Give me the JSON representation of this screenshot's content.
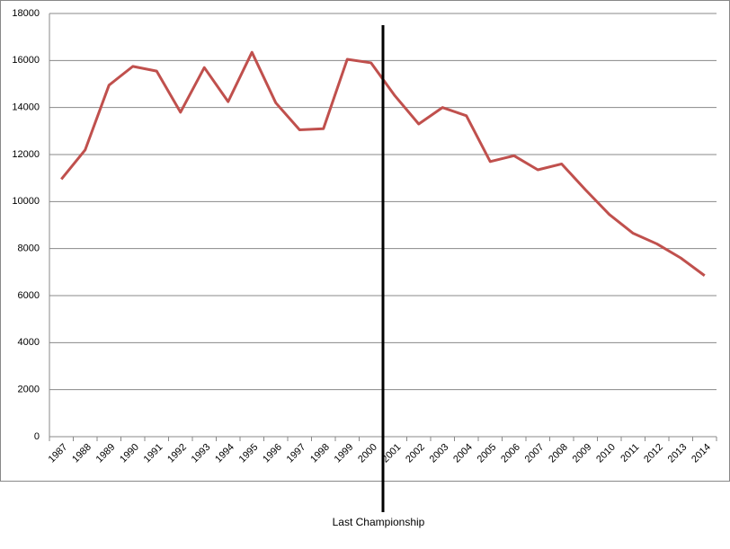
{
  "chart_data": {
    "type": "line",
    "categories": [
      "1987",
      "1988",
      "1989",
      "1990",
      "1991",
      "1992",
      "1993",
      "1994",
      "1995",
      "1996",
      "1997",
      "1998",
      "1999",
      "2000",
      "2001",
      "2002",
      "2003",
      "2004",
      "2005",
      "2006",
      "2007",
      "2008",
      "2009",
      "2010",
      "2011",
      "2012",
      "2013",
      "2014"
    ],
    "series": [
      {
        "color": "#c0504d",
        "values": [
          10950,
          12200,
          14950,
          15750,
          15550,
          13800,
          15700,
          14250,
          16350,
          14200,
          13050,
          13100,
          16050,
          15900,
          14500,
          13300,
          14000,
          13650,
          11700,
          11950,
          11350,
          11600,
          10500,
          9450,
          8650,
          8200,
          7600,
          6850
        ]
      }
    ],
    "ylim": [
      0,
      18000
    ],
    "yticks": [
      0,
      2000,
      4000,
      6000,
      8000,
      10000,
      12000,
      14000,
      16000,
      18000
    ],
    "grid": true,
    "annotation": {
      "text": "Last Championship",
      "category": "2001"
    }
  }
}
